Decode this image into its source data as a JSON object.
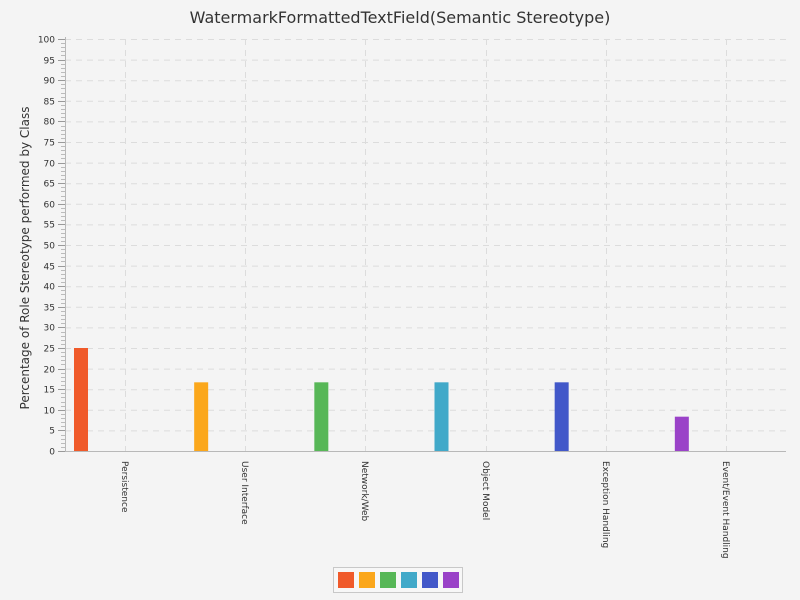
{
  "chart_data": {
    "type": "bar",
    "title": "WatermarkFormattedTextField(Semantic Stereotype)",
    "xlabel": "",
    "ylabel": "Percentage of Role Stereotype performed by Class",
    "ylim": [
      0,
      100
    ],
    "ytick_step": 5,
    "grid": true,
    "legend_position": "bottom",
    "categories": [
      "Persistence",
      "User Interface",
      "Network/Web",
      "Object Model",
      "Exception Handling",
      "Event/Event Handling"
    ],
    "values": [
      25,
      16.67,
      16.67,
      16.67,
      16.67,
      8.33
    ],
    "colors": [
      "#f05a2a",
      "#fba71b",
      "#57b757",
      "#41a9c9",
      "#4258c9",
      "#9a42c8"
    ]
  }
}
